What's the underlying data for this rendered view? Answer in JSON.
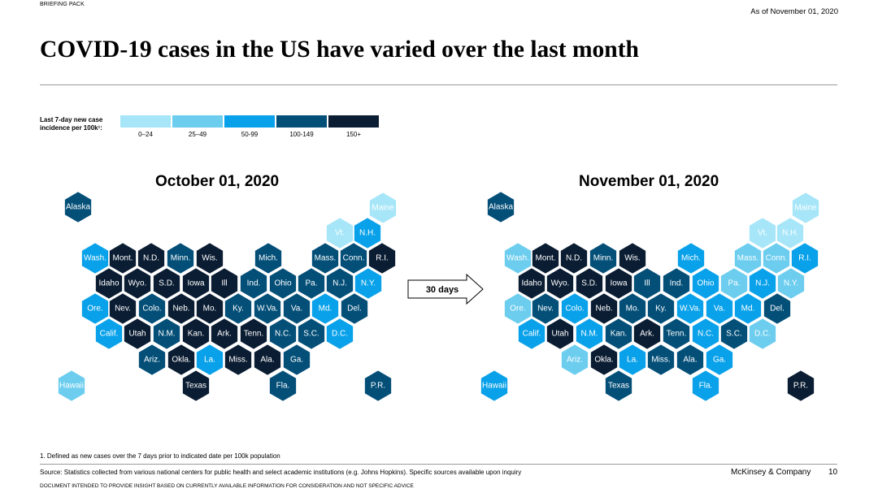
{
  "header": {
    "briefing": "BRIEFING PACK",
    "as_of": "As of November 01, 2020",
    "title": "COVID-19 cases in the US have varied over the last month"
  },
  "legend": {
    "title_line1": "Last 7-day new case",
    "title_line2": "incidence per 100k¹:",
    "items": [
      {
        "label": "0–24",
        "color": "#a6e6f8",
        "level": 0
      },
      {
        "label": "25–49",
        "color": "#6ccdef",
        "level": 1
      },
      {
        "label": "50-99",
        "color": "#08a1ea",
        "level": 2
      },
      {
        "label": "100-149",
        "color": "#044f78",
        "level": 3
      },
      {
        "label": "150+",
        "color": "#0b1d33",
        "level": 4
      }
    ]
  },
  "maps": {
    "left_title": "October 01, 2020",
    "right_title": "November 01, 2020",
    "arrow_label": "30 days"
  },
  "states": [
    {
      "name": "Alaska",
      "oct": 3,
      "nov": 3
    },
    {
      "name": "Maine",
      "oct": 0,
      "nov": 0
    },
    {
      "name": "Vt.",
      "oct": 0,
      "nov": 0
    },
    {
      "name": "N.H.",
      "oct": 2,
      "nov": 0
    },
    {
      "name": "Wash.",
      "oct": 2,
      "nov": 1
    },
    {
      "name": "Mont.",
      "oct": 4,
      "nov": 4
    },
    {
      "name": "N.D.",
      "oct": 4,
      "nov": 4
    },
    {
      "name": "Minn.",
      "oct": 3,
      "nov": 3
    },
    {
      "name": "Wis.",
      "oct": 4,
      "nov": 4
    },
    {
      "name": "Mich.",
      "oct": 3,
      "nov": 2
    },
    {
      "name": "Mass.",
      "oct": 3,
      "nov": 1
    },
    {
      "name": "Conn.",
      "oct": 3,
      "nov": 1
    },
    {
      "name": "R.I.",
      "oct": 4,
      "nov": 2
    },
    {
      "name": "Idaho",
      "oct": 4,
      "nov": 4
    },
    {
      "name": "Wyo.",
      "oct": 4,
      "nov": 4
    },
    {
      "name": "S.D.",
      "oct": 4,
      "nov": 4
    },
    {
      "name": "Iowa",
      "oct": 4,
      "nov": 4
    },
    {
      "name": "Ill",
      "oct": 4,
      "nov": 3
    },
    {
      "name": "Ind.",
      "oct": 3,
      "nov": 3
    },
    {
      "name": "Ohio",
      "oct": 3,
      "nov": 2
    },
    {
      "name": "Pa.",
      "oct": 3,
      "nov": 1
    },
    {
      "name": "N.J.",
      "oct": 3,
      "nov": 2
    },
    {
      "name": "N.Y.",
      "oct": 2,
      "nov": 1
    },
    {
      "name": "Ore.",
      "oct": 2,
      "nov": 1
    },
    {
      "name": "Nev.",
      "oct": 4,
      "nov": 3
    },
    {
      "name": "Colo.",
      "oct": 3,
      "nov": 2
    },
    {
      "name": "Neb.",
      "oct": 4,
      "nov": 4
    },
    {
      "name": "Mo.",
      "oct": 4,
      "nov": 3
    },
    {
      "name": "Ky.",
      "oct": 3,
      "nov": 3
    },
    {
      "name": "W.Va.",
      "oct": 3,
      "nov": 2
    },
    {
      "name": "Va.",
      "oct": 3,
      "nov": 2
    },
    {
      "name": "Md.",
      "oct": 2,
      "nov": 2
    },
    {
      "name": "Del.",
      "oct": 3,
      "nov": 3
    },
    {
      "name": "Calif.",
      "oct": 2,
      "nov": 2
    },
    {
      "name": "Utah",
      "oct": 4,
      "nov": 4
    },
    {
      "name": "N.M.",
      "oct": 3,
      "nov": 2
    },
    {
      "name": "Kan.",
      "oct": 4,
      "nov": 3
    },
    {
      "name": "Ark.",
      "oct": 4,
      "nov": 4
    },
    {
      "name": "Tenn.",
      "oct": 4,
      "nov": 3
    },
    {
      "name": "N.C.",
      "oct": 3,
      "nov": 2
    },
    {
      "name": "S.C.",
      "oct": 3,
      "nov": 3
    },
    {
      "name": "D.C.",
      "oct": 2,
      "nov": 1
    },
    {
      "name": "Ariz.",
      "oct": 3,
      "nov": 1
    },
    {
      "name": "Okla.",
      "oct": 4,
      "nov": 4
    },
    {
      "name": "La.",
      "oct": 2,
      "nov": 2
    },
    {
      "name": "Miss.",
      "oct": 4,
      "nov": 3
    },
    {
      "name": "Ala.",
      "oct": 4,
      "nov": 3
    },
    {
      "name": "Ga.",
      "oct": 3,
      "nov": 2
    },
    {
      "name": "Hawaii",
      "oct": 1,
      "nov": 2
    },
    {
      "name": "Texas",
      "oct": 4,
      "nov": 3
    },
    {
      "name": "Fla.",
      "oct": 3,
      "nov": 2
    },
    {
      "name": "P.R.",
      "oct": 3,
      "nov": 4
    }
  ],
  "footer": {
    "footnote": "1. Defined as new cases over the 7 days prior to indicated date per 100k population",
    "source": "Source: Statistics collected from various national centers for public health and select academic institutions (e.g. Johns Hopkins). Specific sources available upon inquiry",
    "company": "McKinsey & Company",
    "page": "10",
    "disclaimer": "DOCUMENT INTENDED TO PROVIDE INSIGHT BASED ON CURRENTLY AVAILABLE INFORMATION FOR CONSIDERATION AND NOT SPECIFIC ADVICE"
  }
}
